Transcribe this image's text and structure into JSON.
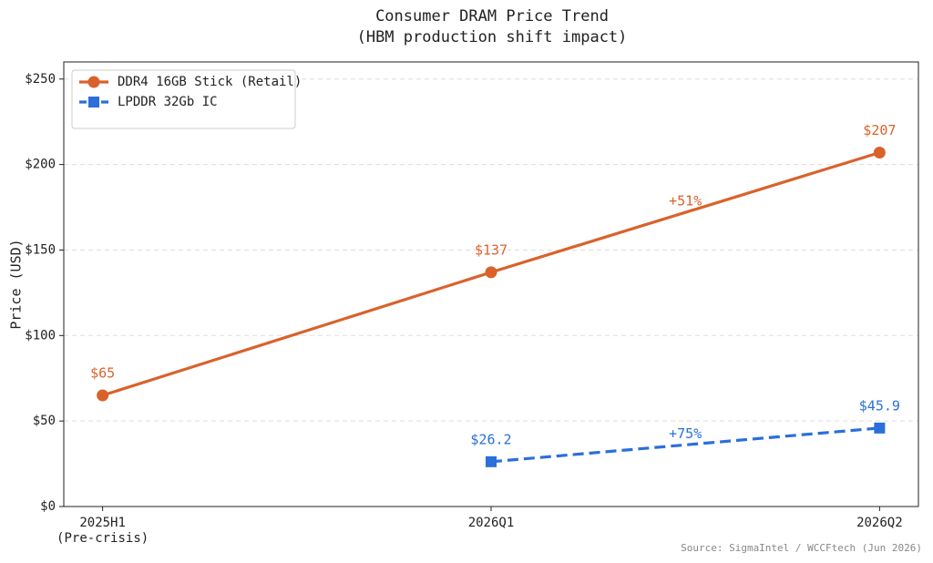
{
  "chart_data": {
    "type": "line",
    "title": "Consumer DRAM Price Trend",
    "subtitle": "(HBM production shift impact)",
    "y_label": "Price (USD)",
    "source": "Source: SigmaIntel / WCCFtech (Jun 2026)",
    "categories": [
      "2025H1\n(Pre-crisis)",
      "2026Q1",
      "2026Q2"
    ],
    "series": [
      {
        "name": "DDR4 16GB Stick (Retail)",
        "color": "#d9622b",
        "marker": "circle",
        "dashed": false,
        "values": [
          65,
          137,
          207
        ],
        "value_labels": [
          "$65",
          "$137",
          "$207"
        ]
      },
      {
        "name": "LPDDR 32Gb IC",
        "color": "#2a6fdb",
        "marker": "square",
        "dashed": true,
        "values": [
          null,
          26.2,
          45.9
        ],
        "value_labels": [
          null,
          "$26.2",
          "$45.9"
        ]
      }
    ],
    "annotations": [
      "+51%",
      "+75%"
    ],
    "ylim": [
      0,
      260
    ],
    "yticks": [
      {
        "value": 0,
        "label": "$0"
      },
      {
        "value": 50,
        "label": "$50"
      },
      {
        "value": 100,
        "label": "$100"
      },
      {
        "value": 150,
        "label": "$150"
      },
      {
        "value": 200,
        "label": "$200"
      },
      {
        "value": 250,
        "label": "$250"
      }
    ],
    "grid": true,
    "legend": "upper left"
  }
}
